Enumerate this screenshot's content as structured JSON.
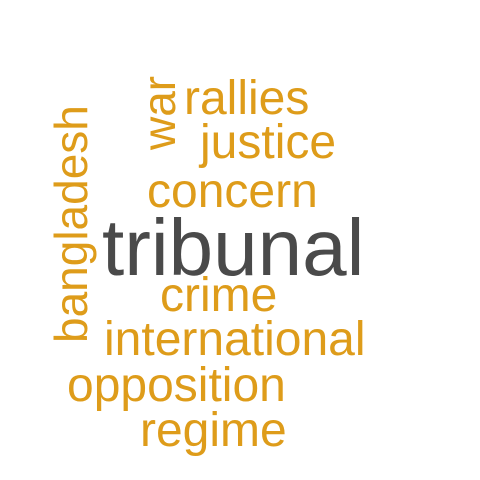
{
  "colors": {
    "primary": "#4a4a4a",
    "accent": "#de9c1a",
    "background": "#ffffff"
  },
  "words": [
    {
      "text": "tribunal",
      "color": "primary",
      "orientation": "horizontal"
    },
    {
      "text": "bangladesh",
      "color": "accent",
      "orientation": "vertical"
    },
    {
      "text": "war",
      "color": "accent",
      "orientation": "vertical"
    },
    {
      "text": "rallies",
      "color": "accent",
      "orientation": "horizontal"
    },
    {
      "text": "justice",
      "color": "accent",
      "orientation": "horizontal"
    },
    {
      "text": "concern",
      "color": "accent",
      "orientation": "horizontal"
    },
    {
      "text": "crime",
      "color": "accent",
      "orientation": "horizontal"
    },
    {
      "text": "international",
      "color": "accent",
      "orientation": "horizontal"
    },
    {
      "text": "opposition",
      "color": "accent",
      "orientation": "horizontal"
    },
    {
      "text": "regime",
      "color": "accent",
      "orientation": "horizontal"
    }
  ]
}
